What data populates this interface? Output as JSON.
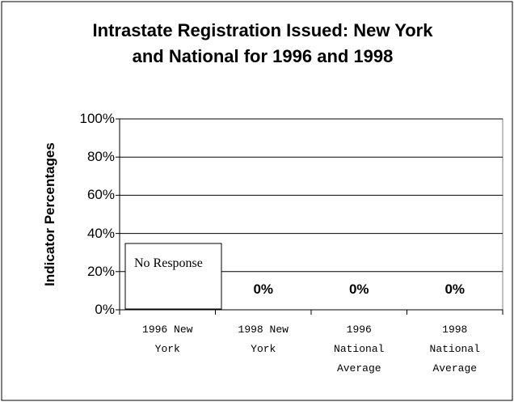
{
  "chart_data": {
    "type": "bar",
    "title": "Intrastate Registration Issued: New York and National for 1996 and 1998",
    "y_label": "Indicator Percentages",
    "categories": [
      "1996 New York",
      "1998 New York",
      "1996 National Average",
      "1998 National Average"
    ],
    "values": [
      null,
      0,
      0,
      0
    ],
    "value_labels": [
      null,
      "0%",
      "0%",
      "0%"
    ],
    "annotations": [
      "No Response"
    ],
    "color": "#808080",
    "ylim": [
      0,
      100
    ],
    "yticks": [
      {
        "value": 0,
        "label": "0%"
      },
      {
        "value": 20,
        "label": "20%"
      },
      {
        "value": 40,
        "label": "40%"
      },
      {
        "value": 60,
        "label": "60%"
      },
      {
        "value": 80,
        "label": "80%"
      },
      {
        "value": 100,
        "label": "100%"
      }
    ],
    "grid": true
  }
}
